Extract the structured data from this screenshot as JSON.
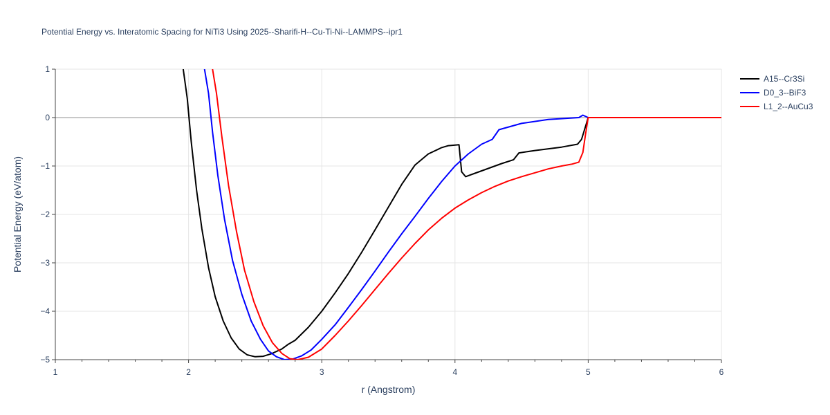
{
  "chart_data": {
    "type": "line",
    "title": "Potential Energy vs. Interatomic Spacing for NiTi3 Using 2025--Sharifi-H--Cu-Ti-Ni--LAMMPS--ipr1",
    "xlabel": "r (Angstrom)",
    "ylabel": "Potential Energy (eV/atom)",
    "xlim": [
      1,
      6
    ],
    "ylim": [
      -5,
      1
    ],
    "xticks": [
      1,
      2,
      3,
      4,
      5,
      6
    ],
    "xtick_labels": [
      "1",
      "2",
      "3",
      "4",
      "5",
      "6"
    ],
    "yticks": [
      1,
      0,
      -1,
      -2,
      -3,
      -4,
      -5
    ],
    "ytick_labels": [
      "1",
      "0",
      "−1",
      "−2",
      "−3",
      "−4",
      "−5"
    ],
    "grid": true,
    "legend_position": "top-right",
    "series": [
      {
        "name": "A15--Cr3Si",
        "color": "#000000",
        "points": [
          [
            1.96,
            1.0
          ],
          [
            1.99,
            0.4
          ],
          [
            2.02,
            -0.5
          ],
          [
            2.06,
            -1.5
          ],
          [
            2.1,
            -2.3
          ],
          [
            2.15,
            -3.1
          ],
          [
            2.2,
            -3.7
          ],
          [
            2.26,
            -4.2
          ],
          [
            2.32,
            -4.55
          ],
          [
            2.38,
            -4.78
          ],
          [
            2.44,
            -4.9
          ],
          [
            2.5,
            -4.94
          ],
          [
            2.56,
            -4.93
          ],
          [
            2.62,
            -4.88
          ],
          [
            2.7,
            -4.78
          ],
          [
            2.75,
            -4.68
          ],
          [
            2.8,
            -4.6
          ],
          [
            2.9,
            -4.33
          ],
          [
            3.0,
            -4.0
          ],
          [
            3.1,
            -3.62
          ],
          [
            3.2,
            -3.22
          ],
          [
            3.3,
            -2.78
          ],
          [
            3.4,
            -2.32
          ],
          [
            3.5,
            -1.85
          ],
          [
            3.6,
            -1.38
          ],
          [
            3.7,
            -0.98
          ],
          [
            3.8,
            -0.75
          ],
          [
            3.9,
            -0.62
          ],
          [
            3.95,
            -0.58
          ],
          [
            4.03,
            -0.56
          ],
          [
            4.05,
            -1.12
          ],
          [
            4.08,
            -1.22
          ],
          [
            4.15,
            -1.15
          ],
          [
            4.25,
            -1.05
          ],
          [
            4.35,
            -0.95
          ],
          [
            4.44,
            -0.87
          ],
          [
            4.48,
            -0.73
          ],
          [
            4.6,
            -0.68
          ],
          [
            4.8,
            -0.61
          ],
          [
            4.92,
            -0.55
          ],
          [
            4.95,
            -0.45
          ],
          [
            5.0,
            0.0
          ],
          [
            6.0,
            0.0
          ]
        ]
      },
      {
        "name": "D0_3--BiF3",
        "color": "#0000ff",
        "points": [
          [
            2.12,
            1.0
          ],
          [
            2.15,
            0.5
          ],
          [
            2.18,
            -0.3
          ],
          [
            2.22,
            -1.2
          ],
          [
            2.27,
            -2.1
          ],
          [
            2.33,
            -2.95
          ],
          [
            2.4,
            -3.65
          ],
          [
            2.47,
            -4.2
          ],
          [
            2.54,
            -4.58
          ],
          [
            2.6,
            -4.82
          ],
          [
            2.66,
            -4.94
          ],
          [
            2.72,
            -5.0
          ],
          [
            2.78,
            -4.99
          ],
          [
            2.85,
            -4.92
          ],
          [
            2.92,
            -4.8
          ],
          [
            3.0,
            -4.58
          ],
          [
            3.1,
            -4.28
          ],
          [
            3.2,
            -3.92
          ],
          [
            3.3,
            -3.55
          ],
          [
            3.4,
            -3.17
          ],
          [
            3.5,
            -2.78
          ],
          [
            3.6,
            -2.4
          ],
          [
            3.7,
            -2.04
          ],
          [
            3.8,
            -1.67
          ],
          [
            3.9,
            -1.32
          ],
          [
            4.0,
            -1.0
          ],
          [
            4.1,
            -0.75
          ],
          [
            4.2,
            -0.55
          ],
          [
            4.28,
            -0.45
          ],
          [
            4.33,
            -0.25
          ],
          [
            4.5,
            -0.12
          ],
          [
            4.7,
            -0.04
          ],
          [
            4.93,
            0.0
          ],
          [
            4.96,
            0.05
          ],
          [
            5.0,
            0.0
          ],
          [
            6.0,
            0.0
          ]
        ]
      },
      {
        "name": "L1_2--AuCu3",
        "color": "#ff0000",
        "points": [
          [
            2.18,
            1.0
          ],
          [
            2.21,
            0.5
          ],
          [
            2.25,
            -0.4
          ],
          [
            2.3,
            -1.4
          ],
          [
            2.36,
            -2.35
          ],
          [
            2.42,
            -3.15
          ],
          [
            2.49,
            -3.8
          ],
          [
            2.56,
            -4.3
          ],
          [
            2.63,
            -4.65
          ],
          [
            2.7,
            -4.87
          ],
          [
            2.76,
            -4.98
          ],
          [
            2.82,
            -5.0
          ],
          [
            2.9,
            -4.95
          ],
          [
            3.0,
            -4.78
          ],
          [
            3.1,
            -4.5
          ],
          [
            3.2,
            -4.2
          ],
          [
            3.3,
            -3.88
          ],
          [
            3.4,
            -3.55
          ],
          [
            3.5,
            -3.22
          ],
          [
            3.6,
            -2.9
          ],
          [
            3.7,
            -2.6
          ],
          [
            3.8,
            -2.32
          ],
          [
            3.9,
            -2.08
          ],
          [
            4.0,
            -1.87
          ],
          [
            4.1,
            -1.7
          ],
          [
            4.2,
            -1.55
          ],
          [
            4.3,
            -1.42
          ],
          [
            4.4,
            -1.31
          ],
          [
            4.5,
            -1.22
          ],
          [
            4.6,
            -1.14
          ],
          [
            4.7,
            -1.06
          ],
          [
            4.8,
            -1.0
          ],
          [
            4.88,
            -0.96
          ],
          [
            4.93,
            -0.92
          ],
          [
            4.96,
            -0.72
          ],
          [
            4.98,
            -0.35
          ],
          [
            5.0,
            0.0
          ],
          [
            6.0,
            0.0
          ]
        ]
      }
    ]
  }
}
